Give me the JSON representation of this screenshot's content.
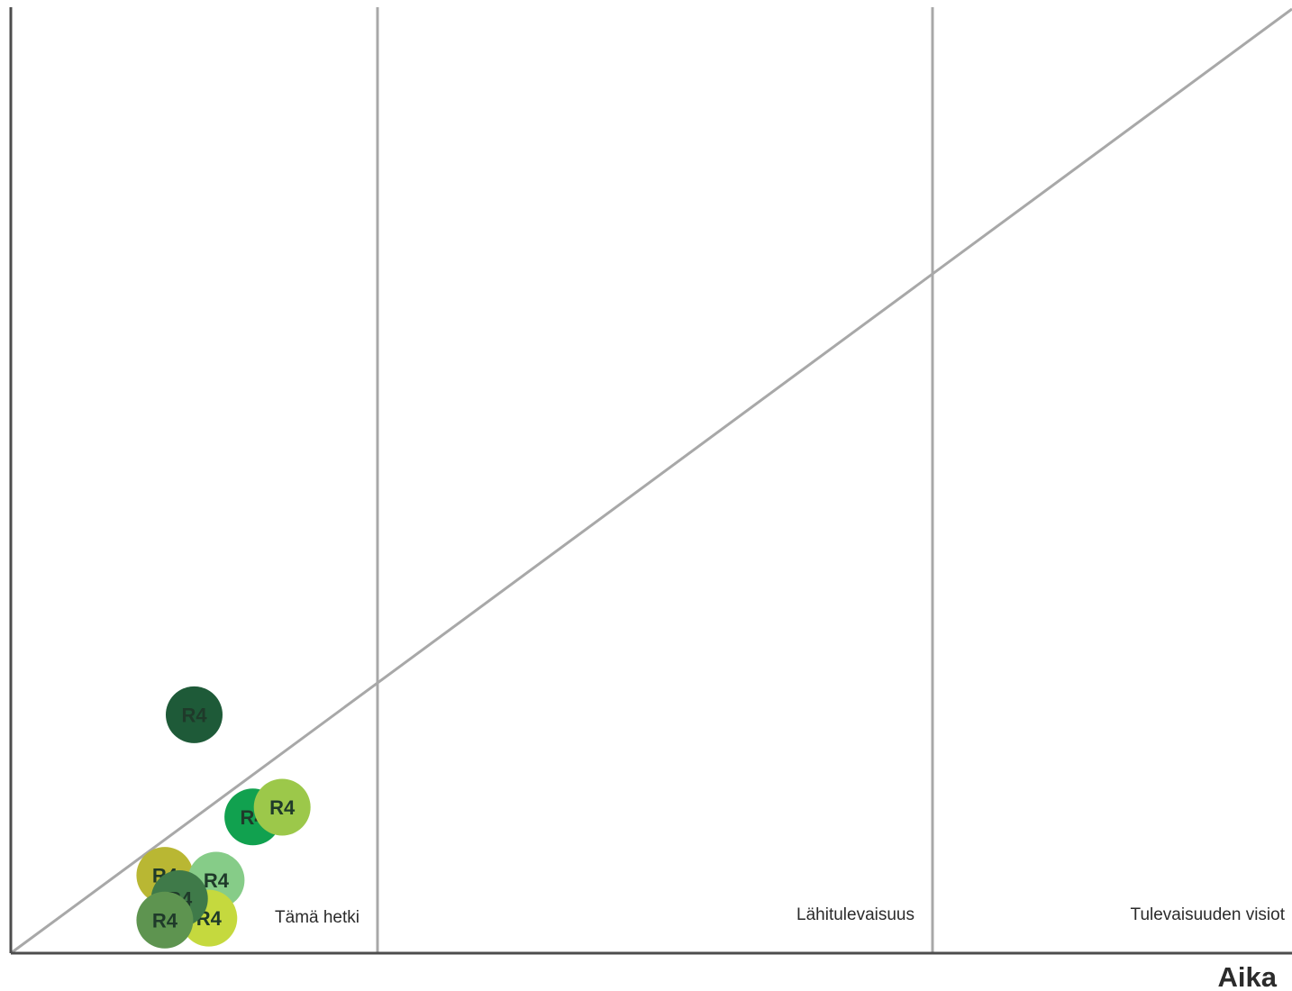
{
  "chart_data": {
    "type": "scatter",
    "x_axis_title": "Aika",
    "phases": [
      "Tämä hetki",
      "Lähitulevaisuus",
      "Tulevaisuuden visiot"
    ],
    "points": [
      {
        "label": "R4",
        "x": 0.5,
        "y": 2.45,
        "color": "#1e5a38"
      },
      {
        "label": "R4",
        "x": 0.66,
        "y": 1.4,
        "color": "#11a14f"
      },
      {
        "label": "R4",
        "x": 0.74,
        "y": 1.5,
        "color": "#9cc84a"
      },
      {
        "label": "R4",
        "x": 0.42,
        "y": 0.8,
        "color": "#b9b733"
      },
      {
        "label": "R4",
        "x": 0.56,
        "y": 0.75,
        "color": "#86cc88"
      },
      {
        "label": "R4",
        "x": 0.54,
        "y": 0.36,
        "color": "#c5d93e"
      },
      {
        "label": "R4",
        "x": 0.46,
        "y": 0.56,
        "color": "#3f7a49"
      },
      {
        "label": "R4",
        "x": 0.42,
        "y": 0.34,
        "color": "#5e9450"
      }
    ]
  }
}
